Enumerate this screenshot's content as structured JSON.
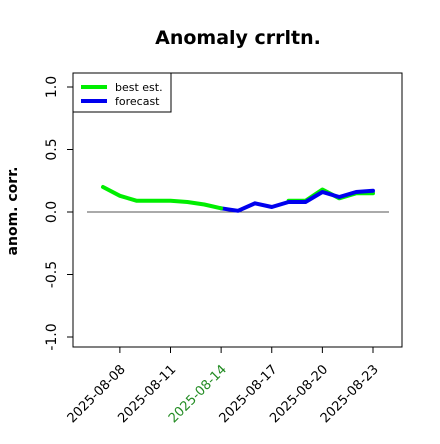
{
  "chart_data": {
    "type": "line",
    "title": "Anomaly crrltn.",
    "xlabel": "",
    "ylabel": "anom. corr.",
    "x": [
      "2025-08-07",
      "2025-08-08",
      "2025-08-09",
      "2025-08-10",
      "2025-08-11",
      "2025-08-12",
      "2025-08-13",
      "2025-08-14",
      "2025-08-15",
      "2025-08-16",
      "2025-08-17",
      "2025-08-18",
      "2025-08-19",
      "2025-08-20",
      "2025-08-21",
      "2025-08-22",
      "2025-08-23"
    ],
    "ylim": [
      -1.0,
      1.0
    ],
    "yticks": [
      "-1.0",
      "-0.5",
      "0.0",
      "0.5",
      "1.0"
    ],
    "xtick_labels": [
      "2025-08-08",
      "2025-08-11",
      "2025-08-14",
      "2025-08-17",
      "2025-08-20",
      "2025-08-23"
    ],
    "highlight_tick": "2025-08-14",
    "highlight_color": "#228B22",
    "reference_line": 0.0,
    "grid": false,
    "legend_position": "top-left",
    "series": [
      {
        "name": "best est.",
        "color": "#00ee00",
        "values": [
          0.2,
          0.13,
          0.09,
          0.09,
          0.09,
          0.08,
          0.06,
          0.03,
          null,
          null,
          null,
          null,
          null,
          null,
          null,
          null,
          null
        ]
      },
      {
        "name": "forecast",
        "color": "#0000ee",
        "values": [
          null,
          null,
          null,
          null,
          null,
          null,
          null,
          0.03,
          0.01,
          0.07,
          0.04,
          0.08,
          0.08,
          0.16,
          0.12,
          0.16,
          0.17
        ]
      },
      {
        "name": "",
        "color": "#00ee00",
        "values": [
          null,
          null,
          null,
          null,
          null,
          null,
          null,
          null,
          null,
          null,
          null,
          0.09,
          0.09,
          0.18,
          0.11,
          0.15,
          0.15
        ]
      }
    ]
  }
}
